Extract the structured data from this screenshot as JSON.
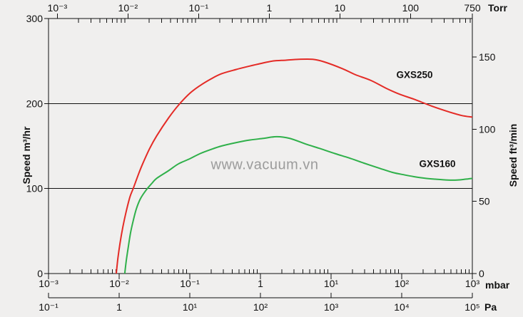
{
  "watermark": {
    "text": "www.vacuum.vn",
    "color": "#9b9b9b"
  },
  "colors": {
    "background": "#f0efee",
    "axis": "#111111",
    "gxs250": "#e42b26",
    "gxs160": "#2fb04a"
  },
  "chart_data": {
    "type": "line",
    "x_scale": {
      "type": "log",
      "primary_unit": "mbar",
      "min": 0.001,
      "max": 1000
    },
    "axes": {
      "top": {
        "unit": "Torr",
        "mbar_per_unit": 1.33322,
        "minor_cap": 750,
        "ticks": [
          {
            "v": 0.001,
            "label": "10⁻³"
          },
          {
            "v": 0.01,
            "label": "10⁻²"
          },
          {
            "v": 0.1,
            "label": "10⁻¹"
          },
          {
            "v": 1,
            "label": "1"
          },
          {
            "v": 10,
            "label": "10"
          },
          {
            "v": 100,
            "label": "100"
          },
          {
            "v": 750,
            "label": "750"
          }
        ]
      },
      "bottom": {
        "unit": "mbar",
        "mbar_per_unit": 1,
        "minor_cap": 1000,
        "ticks": [
          {
            "v": 0.001,
            "label": "10⁻³"
          },
          {
            "v": 0.01,
            "label": "10⁻²"
          },
          {
            "v": 0.1,
            "label": "10⁻¹"
          },
          {
            "v": 1,
            "label": "1"
          },
          {
            "v": 10,
            "label": "10¹"
          },
          {
            "v": 100,
            "label": "10²"
          },
          {
            "v": 1000,
            "label": "10³"
          }
        ]
      },
      "pa": {
        "unit": "Pa",
        "mbar_per_unit": 0.01,
        "ticks": [
          {
            "v": 0.1,
            "label": "10⁻¹"
          },
          {
            "v": 1,
            "label": "1"
          },
          {
            "v": 10,
            "label": "10¹"
          },
          {
            "v": 100,
            "label": "10²"
          },
          {
            "v": 1000,
            "label": "10³"
          },
          {
            "v": 10000,
            "label": "10⁴"
          },
          {
            "v": 100000,
            "label": "10⁵"
          }
        ]
      },
      "left": {
        "label": "Speed m³/hr",
        "min": 0,
        "max": 300,
        "ticks": [
          {
            "v": 0,
            "label": "0"
          },
          {
            "v": 100,
            "label": "100"
          },
          {
            "v": 200,
            "label": "200"
          },
          {
            "v": 300,
            "label": "300"
          }
        ],
        "gridlines": [
          100,
          200
        ]
      },
      "right": {
        "label": "Speed ft³/min",
        "m3hr_per_unit": 1.699,
        "ticks": [
          {
            "v": 0,
            "label": "0"
          },
          {
            "v": 50,
            "label": "50"
          },
          {
            "v": 100,
            "label": "100"
          },
          {
            "v": 150,
            "label": "150"
          }
        ]
      }
    },
    "series": [
      {
        "name": "GXS250",
        "color": "#e42b26",
        "points_mbar_m3hr": [
          [
            0.0091,
            0
          ],
          [
            0.0096,
            18
          ],
          [
            0.0103,
            36
          ],
          [
            0.0113,
            55
          ],
          [
            0.0125,
            72
          ],
          [
            0.0142,
            90
          ],
          [
            0.0158,
            100
          ],
          [
            0.019,
            118
          ],
          [
            0.0215,
            129
          ],
          [
            0.027,
            147
          ],
          [
            0.034,
            162
          ],
          [
            0.05,
            183
          ],
          [
            0.069,
            198
          ],
          [
            0.1,
            212
          ],
          [
            0.139,
            221
          ],
          [
            0.2,
            229
          ],
          [
            0.28,
            235
          ],
          [
            0.45,
            240
          ],
          [
            0.7,
            244
          ],
          [
            1.0,
            247
          ],
          [
            1.5,
            250
          ],
          [
            2.3,
            251
          ],
          [
            3.5,
            252
          ],
          [
            5.5,
            252
          ],
          [
            8,
            249
          ],
          [
            14.5,
            241
          ],
          [
            22,
            234
          ],
          [
            37,
            227
          ],
          [
            60,
            218
          ],
          [
            93,
            211
          ],
          [
            150,
            205
          ],
          [
            266,
            197
          ],
          [
            475,
            190
          ],
          [
            700,
            186
          ],
          [
            1000,
            184
          ]
        ]
      },
      {
        "name": "GXS160",
        "color": "#2fb04a",
        "points_mbar_m3hr": [
          [
            0.012,
            0
          ],
          [
            0.0126,
            15
          ],
          [
            0.0134,
            30
          ],
          [
            0.0145,
            48
          ],
          [
            0.0158,
            62
          ],
          [
            0.0175,
            76
          ],
          [
            0.02,
            88
          ],
          [
            0.024,
            98
          ],
          [
            0.029,
            106
          ],
          [
            0.034,
            112
          ],
          [
            0.05,
            121
          ],
          [
            0.069,
            129
          ],
          [
            0.1,
            135
          ],
          [
            0.139,
            141
          ],
          [
            0.2,
            146
          ],
          [
            0.28,
            150
          ],
          [
            0.45,
            154
          ],
          [
            0.7,
            157
          ],
          [
            1.1,
            159
          ],
          [
            1.7,
            161
          ],
          [
            2.6,
            159
          ],
          [
            4.5,
            152
          ],
          [
            7,
            147
          ],
          [
            11.5,
            141
          ],
          [
            18,
            136
          ],
          [
            29,
            130
          ],
          [
            48,
            124
          ],
          [
            74,
            119
          ],
          [
            110,
            116
          ],
          [
            149,
            114
          ],
          [
            220,
            112
          ],
          [
            299,
            111
          ],
          [
            450,
            110
          ],
          [
            603,
            110
          ],
          [
            800,
            111
          ],
          [
            1000,
            112
          ]
        ]
      }
    ]
  }
}
